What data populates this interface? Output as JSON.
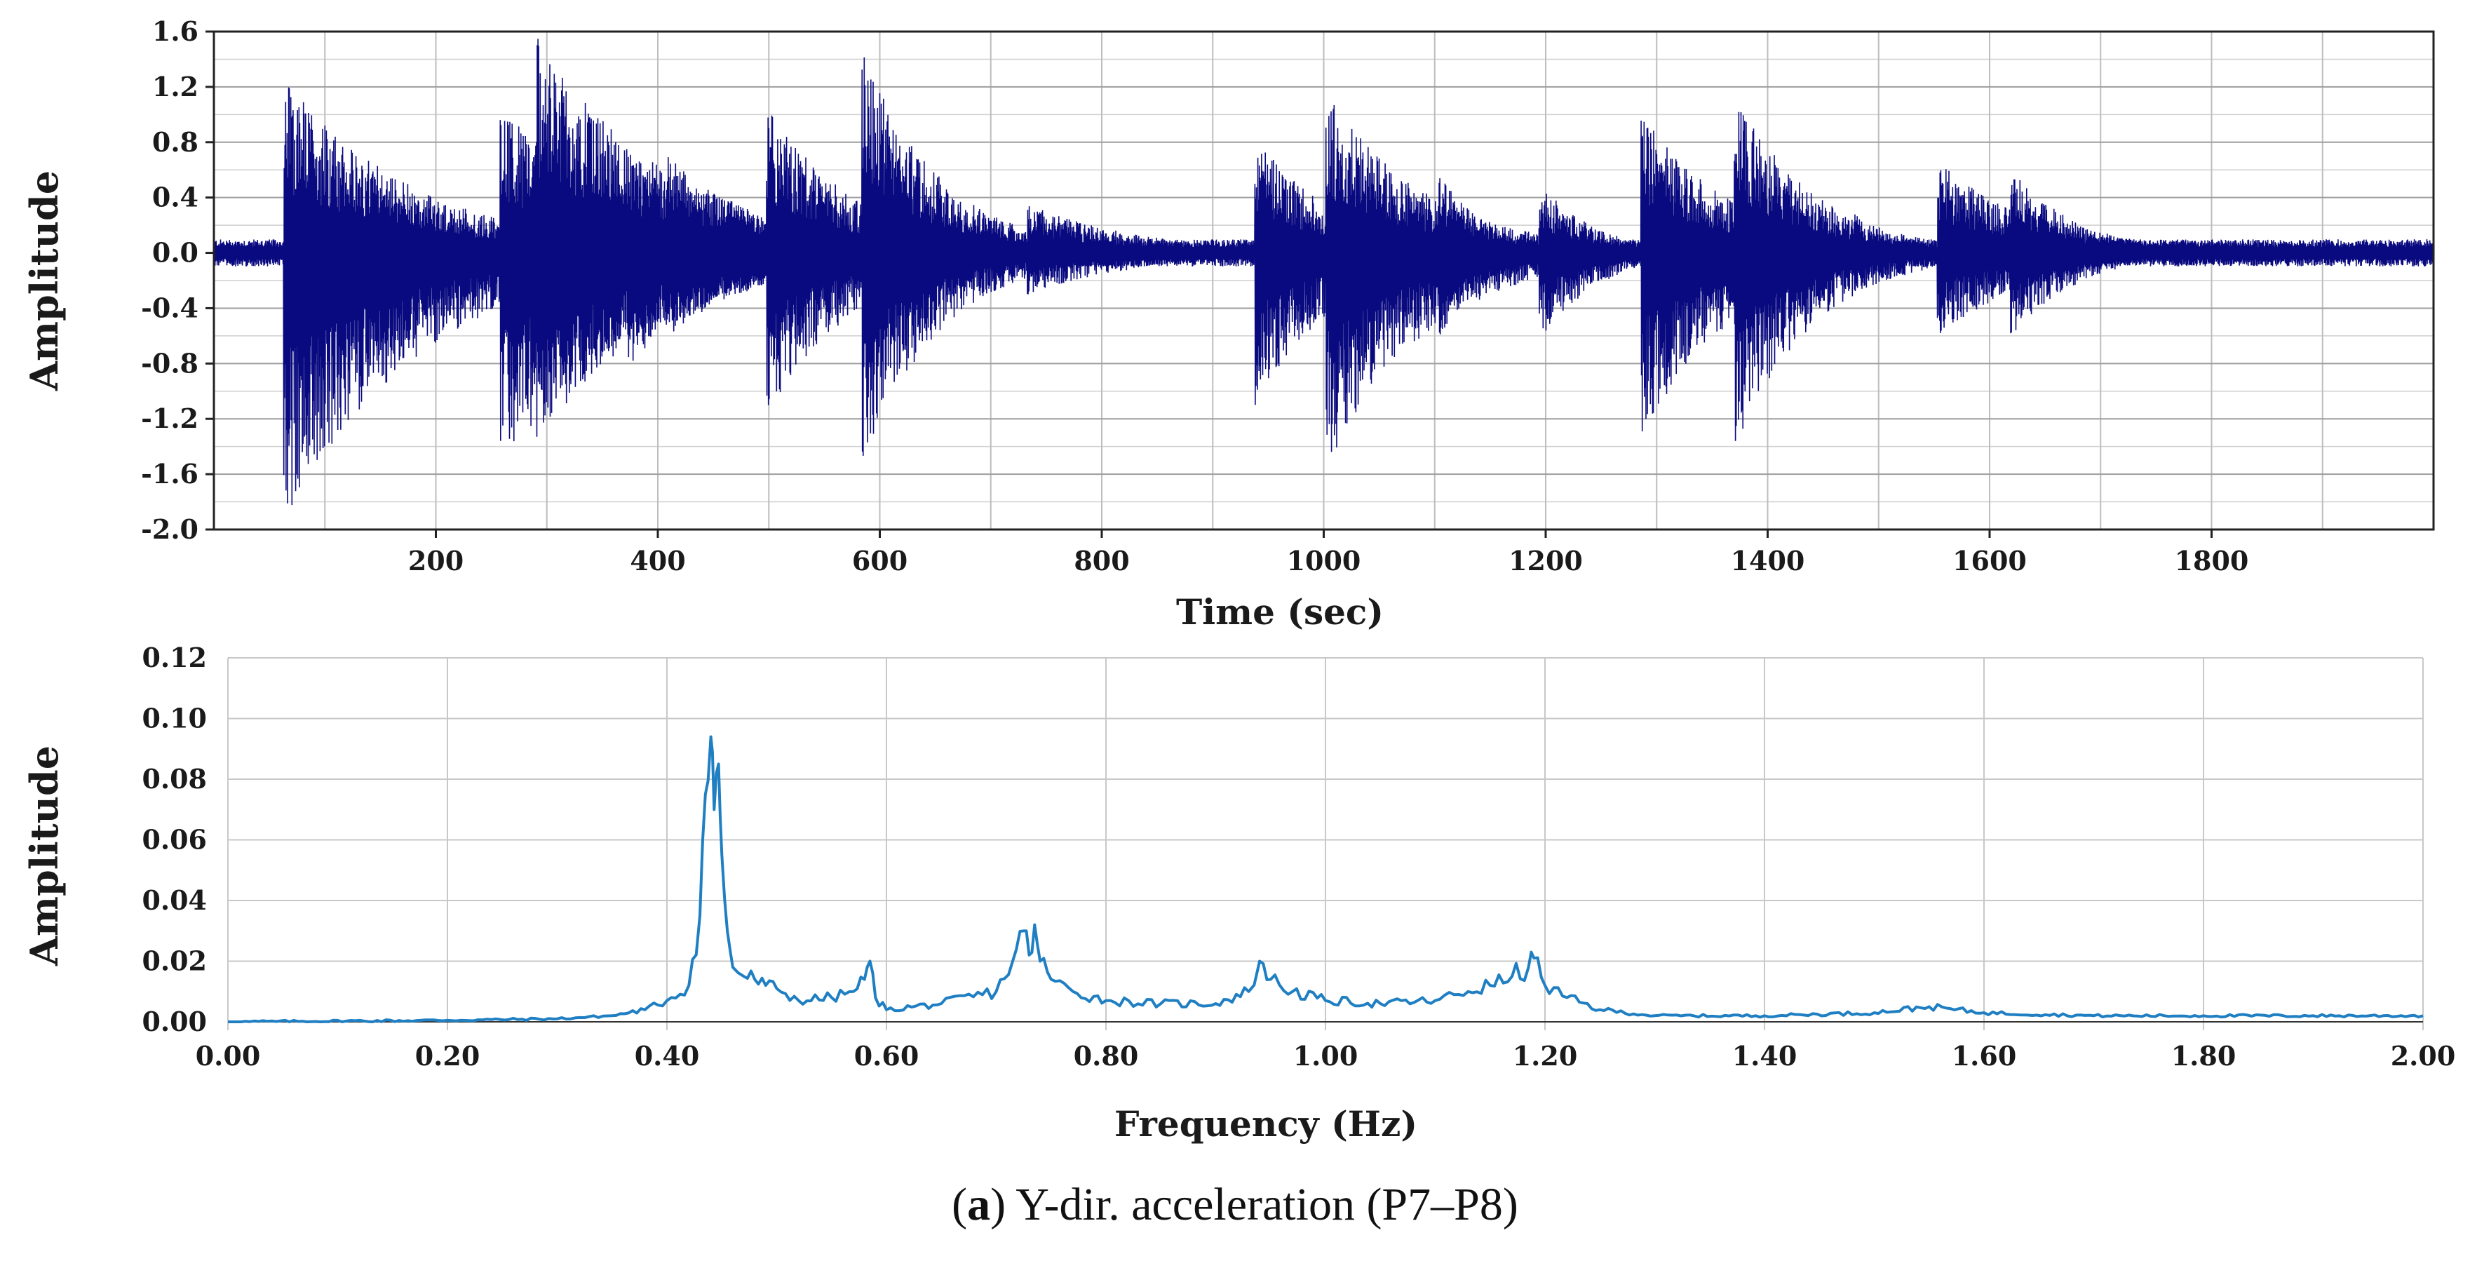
{
  "chart_data": [
    {
      "type": "line",
      "xlabel": "Time (sec)",
      "ylabel": "Amplitude",
      "xlim": [
        0,
        2000
      ],
      "ylim": [
        -2.0,
        1.6
      ],
      "x_ticks": [
        "200",
        "400",
        "600",
        "800",
        "1000",
        "1200",
        "1400",
        "1600",
        "1800"
      ],
      "y_ticks": [
        "1.6",
        "1.2",
        "0.8",
        "0.4",
        "0.0",
        "-0.4",
        "-0.8",
        "-1.2",
        "-1.6",
        "-2.0"
      ],
      "grid": true,
      "color": "#0a0a80",
      "series": [
        {
          "bursts": [
            {
              "t": 65,
              "pos": 1.25,
              "neg": -2.0,
              "decay": 120
            },
            {
              "t": 140,
              "pos": 0.55,
              "neg": -0.85,
              "decay": 60
            },
            {
              "t": 260,
              "pos": 1.05,
              "neg": -1.55,
              "decay": 120
            },
            {
              "t": 293,
              "pos": 1.55,
              "neg": -1.35,
              "decay": 120
            },
            {
              "t": 375,
              "pos": 0.75,
              "neg": -0.9,
              "decay": 50
            },
            {
              "t": 410,
              "pos": 0.7,
              "neg": -0.6,
              "decay": 90
            },
            {
              "t": 500,
              "pos": 1.05,
              "neg": -1.15,
              "decay": 80
            },
            {
              "t": 586,
              "pos": 1.45,
              "neg": -1.5,
              "decay": 70
            },
            {
              "t": 735,
              "pos": 0.35,
              "neg": -0.3,
              "decay": 100
            },
            {
              "t": 940,
              "pos": 0.85,
              "neg": -1.1,
              "decay": 70
            },
            {
              "t": 1004,
              "pos": 1.15,
              "neg": -1.55,
              "decay": 90
            },
            {
              "t": 1105,
              "pos": 0.6,
              "neg": -0.6,
              "decay": 40
            },
            {
              "t": 1196,
              "pos": 0.5,
              "neg": -0.65,
              "decay": 50
            },
            {
              "t": 1288,
              "pos": 1.05,
              "neg": -1.35,
              "decay": 80
            },
            {
              "t": 1372,
              "pos": 1.15,
              "neg": -1.4,
              "decay": 70
            },
            {
              "t": 1478,
              "pos": 0.3,
              "neg": -0.3,
              "decay": 30
            },
            {
              "t": 1555,
              "pos": 0.65,
              "neg": -0.6,
              "decay": 90
            },
            {
              "t": 1620,
              "pos": 0.6,
              "neg": -0.6,
              "decay": 60
            },
            {
              "t": 1755,
              "pos": 0.1,
              "neg": -0.1,
              "decay": 300
            }
          ],
          "noise": 0.07
        }
      ]
    },
    {
      "type": "line",
      "xlabel": "Frequency (Hz)",
      "ylabel": "Amplitude",
      "xlim": [
        0,
        2.0
      ],
      "ylim": [
        0,
        0.12
      ],
      "x_ticks": [
        "0.00",
        "0.20",
        "0.40",
        "0.60",
        "0.80",
        "1.00",
        "1.20",
        "1.40",
        "1.60",
        "1.80",
        "2.00"
      ],
      "y_ticks": [
        "0.12",
        "0.10",
        "0.08",
        "0.06",
        "0.04",
        "0.02",
        "0.00"
      ],
      "grid": true,
      "color": "#1f7fc2",
      "series": [
        {
          "x": [
            0,
            0.2,
            0.3,
            0.35,
            0.38,
            0.4,
            0.42,
            0.43,
            0.435,
            0.44,
            0.443,
            0.447,
            0.45,
            0.455,
            0.46,
            0.47,
            0.48,
            0.49,
            0.5,
            0.52,
            0.55,
            0.57,
            0.58,
            0.585,
            0.59,
            0.6,
            0.65,
            0.7,
            0.715,
            0.725,
            0.73,
            0.735,
            0.74,
            0.75,
            0.77,
            0.8,
            0.85,
            0.9,
            0.93,
            0.94,
            0.95,
            0.97,
            1.0,
            1.05,
            1.1,
            1.13,
            1.15,
            1.17,
            1.185,
            1.19,
            1.2,
            1.22,
            1.25,
            1.3,
            1.4,
            1.5,
            1.55,
            1.6,
            1.7,
            1.8,
            1.9,
            2.0
          ],
          "y": [
            0,
            0.0005,
            0.001,
            0.002,
            0.004,
            0.007,
            0.012,
            0.035,
            0.075,
            0.094,
            0.07,
            0.085,
            0.055,
            0.03,
            0.018,
            0.015,
            0.014,
            0.012,
            0.011,
            0.007,
            0.008,
            0.01,
            0.014,
            0.02,
            0.008,
            0.004,
            0.006,
            0.01,
            0.02,
            0.03,
            0.022,
            0.032,
            0.02,
            0.014,
            0.01,
            0.007,
            0.006,
            0.006,
            0.01,
            0.02,
            0.014,
            0.01,
            0.007,
            0.006,
            0.007,
            0.01,
            0.012,
            0.015,
            0.018,
            0.021,
            0.012,
            0.008,
            0.004,
            0.002,
            0.002,
            0.003,
            0.005,
            0.003,
            0.002,
            0.002,
            0.002,
            0.002
          ]
        }
      ]
    }
  ],
  "caption": {
    "letter": "a",
    "text": " Y-dir. acceleration (P7–P8)"
  }
}
